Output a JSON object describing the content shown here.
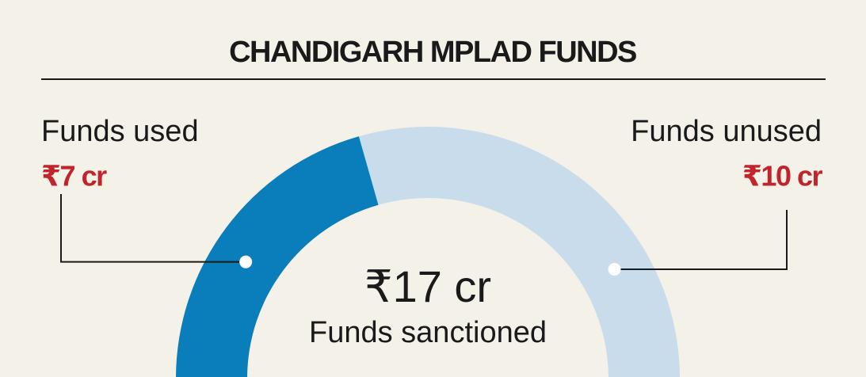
{
  "chart_data": {
    "type": "semi-donut",
    "title": "CHANDIGARH MPLAD FUNDS",
    "categories": [
      "Funds used",
      "Funds unused"
    ],
    "values": [
      7,
      10
    ],
    "value_labels": [
      "₹7 cr",
      "₹10 cr"
    ],
    "colors": [
      "#0a7dbb",
      "#c9dcec"
    ],
    "center_label": "₹17 cr",
    "center_caption": "Funds sanctioned"
  }
}
